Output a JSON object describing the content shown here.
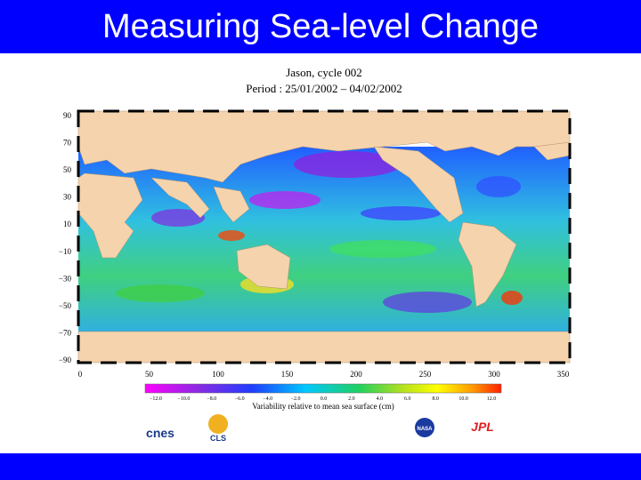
{
  "header": {
    "title": "Measuring Sea-level Change"
  },
  "map": {
    "title": "Jason, cycle 002",
    "period": "Period : 25/01/2002 – 04/02/2002",
    "y_labels": [
      "90",
      "70",
      "50",
      "30",
      "10",
      "−10",
      "−30",
      "−50",
      "−70",
      "−90"
    ],
    "x_labels": [
      "0",
      "50",
      "100",
      "150",
      "200",
      "250",
      "300",
      "350"
    ]
  },
  "colorbar": {
    "labels": [
      "−12.0",
      "−10.0",
      "−8.0",
      "−6.0",
      "−4.0",
      "−2.0",
      "0.0",
      "2.0",
      "4.0",
      "6.0",
      "8.0",
      "10.0",
      "12.0"
    ],
    "caption": "Variability relative to mean sea surface (cm)"
  },
  "logos": [
    "cnes",
    "CLS",
    "NASA",
    "JPL"
  ]
}
